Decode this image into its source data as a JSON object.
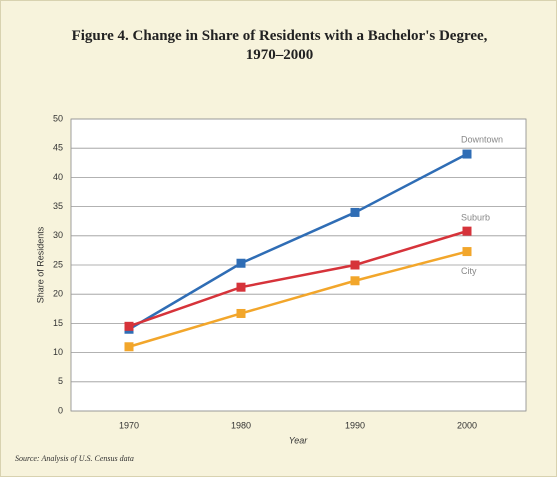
{
  "chart_data": {
    "type": "line",
    "title": "Figure 4. Change in Share of Residents with a Bachelor's Degree, 1970–2000",
    "x_label": "Year",
    "y_label": "Share of Residents",
    "source": "Source: Analysis of U.S. Census data",
    "categories": [
      "1970",
      "1980",
      "1990",
      "2000"
    ],
    "series": [
      {
        "name": "Downtown",
        "color": "#2f6db5",
        "values": [
          14,
          25.3,
          34,
          44
        ]
      },
      {
        "name": "Suburb",
        "color": "#d6333a",
        "values": [
          14.5,
          21.2,
          25,
          30.8
        ]
      },
      {
        "name": "City",
        "color": "#f2a62b",
        "values": [
          11,
          16.7,
          22.3,
          27.3
        ]
      }
    ],
    "ylim": [
      0,
      50
    ],
    "yticks": [
      0,
      5,
      10,
      15,
      20,
      25,
      30,
      35,
      40,
      45,
      50
    ],
    "grid": true
  }
}
